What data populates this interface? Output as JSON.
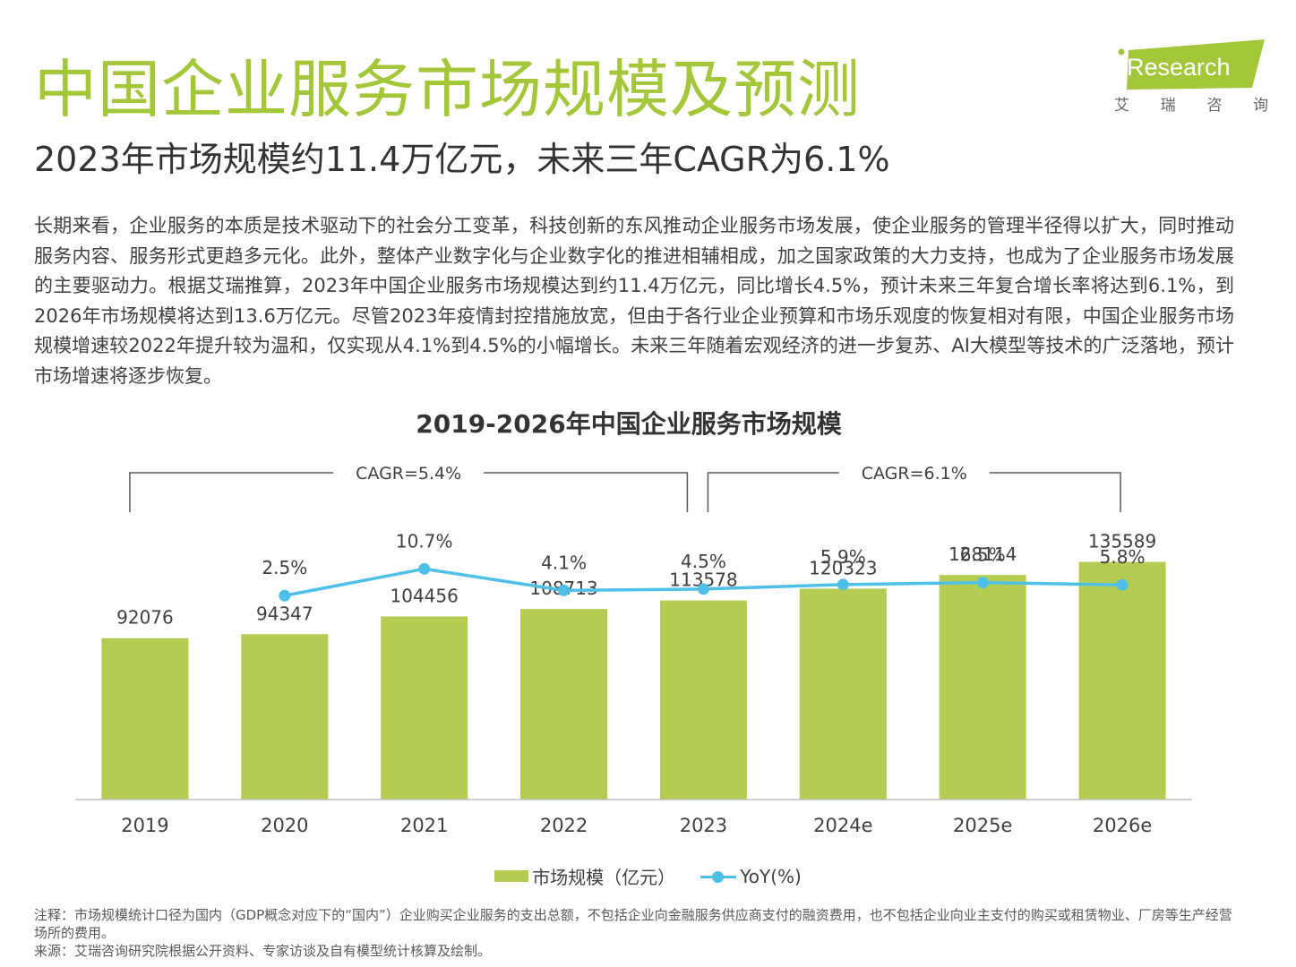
{
  "header": {
    "title": "中国企业服务市场规模及预测",
    "subtitle": "2023年市场规模约11.4万亿元，未来三年CAGR为6.1%"
  },
  "logo": {
    "text": "iResearch",
    "chars": [
      "艾",
      "瑞",
      "咨",
      "询"
    ],
    "colors": {
      "green": "#a4c639",
      "text_light": "#ffffff"
    }
  },
  "paragraph": "长期来看，企业服务的本质是技术驱动下的社会分工变革，科技创新的东风推动企业服务市场发展，使企业服务的管理半径得以扩大，同时推动服务内容、服务形式更趋多元化。此外，整体产业数字化与企业数字化的推进相辅相成，加之国家政策的大力支持，也成为了企业服务市场发展的主要驱动力。根据艾瑞推算，2023年中国企业服务市场规模达到约11.4万亿元，同比增长4.5%，预计未来三年复合增长率将达到6.1%，到2026年市场规模将达到13.6万亿元。尽管2023年疫情封控措施放宽，但由于各行业企业预算和市场乐观度的恢复相对有限，中国企业服务市场规模增速较2022年提升较为温和，仅实现从4.1%到4.5%的小幅增长。未来三年随着宏观经济的进一步复苏、AI大模型等技术的广泛落地，预计市场增速将逐步恢复。",
  "chart_data": {
    "type": "bar",
    "title": "2019-2026年中国企业服务市场规模",
    "categories": [
      "2019",
      "2020",
      "2021",
      "2022",
      "2023",
      "2024e",
      "2025e",
      "2026e"
    ],
    "series": [
      {
        "name": "市场规模（亿元）",
        "type": "bar",
        "color": "#b5cc52",
        "values": [
          92076,
          94347,
          104456,
          108713,
          113578,
          120323,
          128114,
          135589
        ]
      },
      {
        "name": "YoY(%)",
        "type": "line",
        "color": "#4ec0e8",
        "values": [
          null,
          2.5,
          10.7,
          4.1,
          4.5,
          5.9,
          6.5,
          5.8
        ],
        "labels": [
          "",
          "2.5%",
          "10.7%",
          "4.1%",
          "4.5%",
          "5.9%",
          "6.5%",
          "5.8%"
        ]
      }
    ],
    "bar_ylim": [
      0,
      143000
    ],
    "line_ylim": [
      -60,
      30
    ],
    "annotations": [
      {
        "text": "CAGR=5.4%",
        "from": "2019",
        "to": "2023"
      },
      {
        "text": "CAGR=6.1%",
        "from": "2023",
        "to": "2026e"
      }
    ],
    "legend_position": "bottom",
    "grid": false
  },
  "footnotes": {
    "note": "注释：市场规模统计口径为国内（GDP概念对应下的“国内”）企业购买企业服务的支出总额，不包括企业向金融服务供应商支付的融资费用，也不包括企业向业主支付的购买或租赁物业、厂房等生产经营场所的费用。",
    "source": "来源：艾瑞咨询研究院根据公开资料、专家访谈及自有模型统计核算及绘制。"
  },
  "colors": {
    "title_green": "#a4c639",
    "text": "#333333",
    "bar": "#b5cc52",
    "line": "#4ec0e8",
    "axis": "#bfbfbf",
    "bracket": "#595959"
  }
}
